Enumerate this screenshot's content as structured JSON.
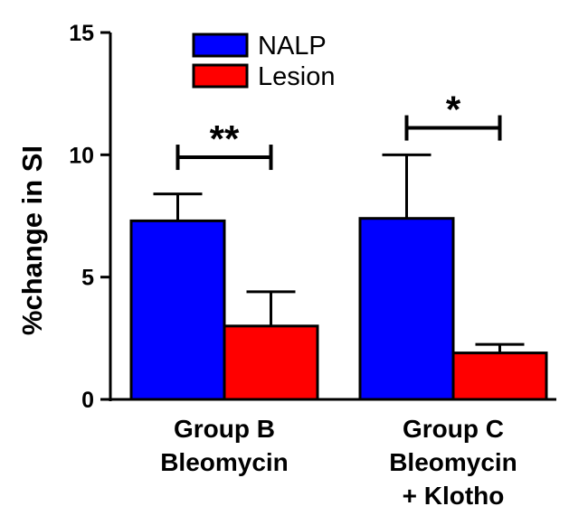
{
  "chart_data": {
    "type": "bar",
    "title": "",
    "xlabel": "",
    "ylabel": "%change in SI",
    "ylim": [
      0,
      15
    ],
    "yticks": [
      0,
      5,
      10,
      15
    ],
    "ytick_labels": [
      "0",
      "5",
      "10",
      "15"
    ],
    "grid": false,
    "legend_position": "top-center",
    "categories": [
      [
        "Group B",
        "Bleomycin"
      ],
      [
        "Group C",
        "Bleomycin",
        "+ Klotho"
      ]
    ],
    "series": [
      {
        "name": "NALP",
        "color": "#0000ff",
        "values": [
          7.3,
          7.4
        ],
        "errors": [
          1.1,
          2.6
        ]
      },
      {
        "name": "Lesion",
        "color": "#ff0000",
        "values": [
          3.0,
          1.9
        ],
        "errors": [
          1.4,
          0.35
        ]
      }
    ],
    "significance": [
      {
        "group_index": 0,
        "label": "**",
        "y": 9.9
      },
      {
        "group_index": 1,
        "label": "*",
        "y": 11.1
      }
    ]
  }
}
